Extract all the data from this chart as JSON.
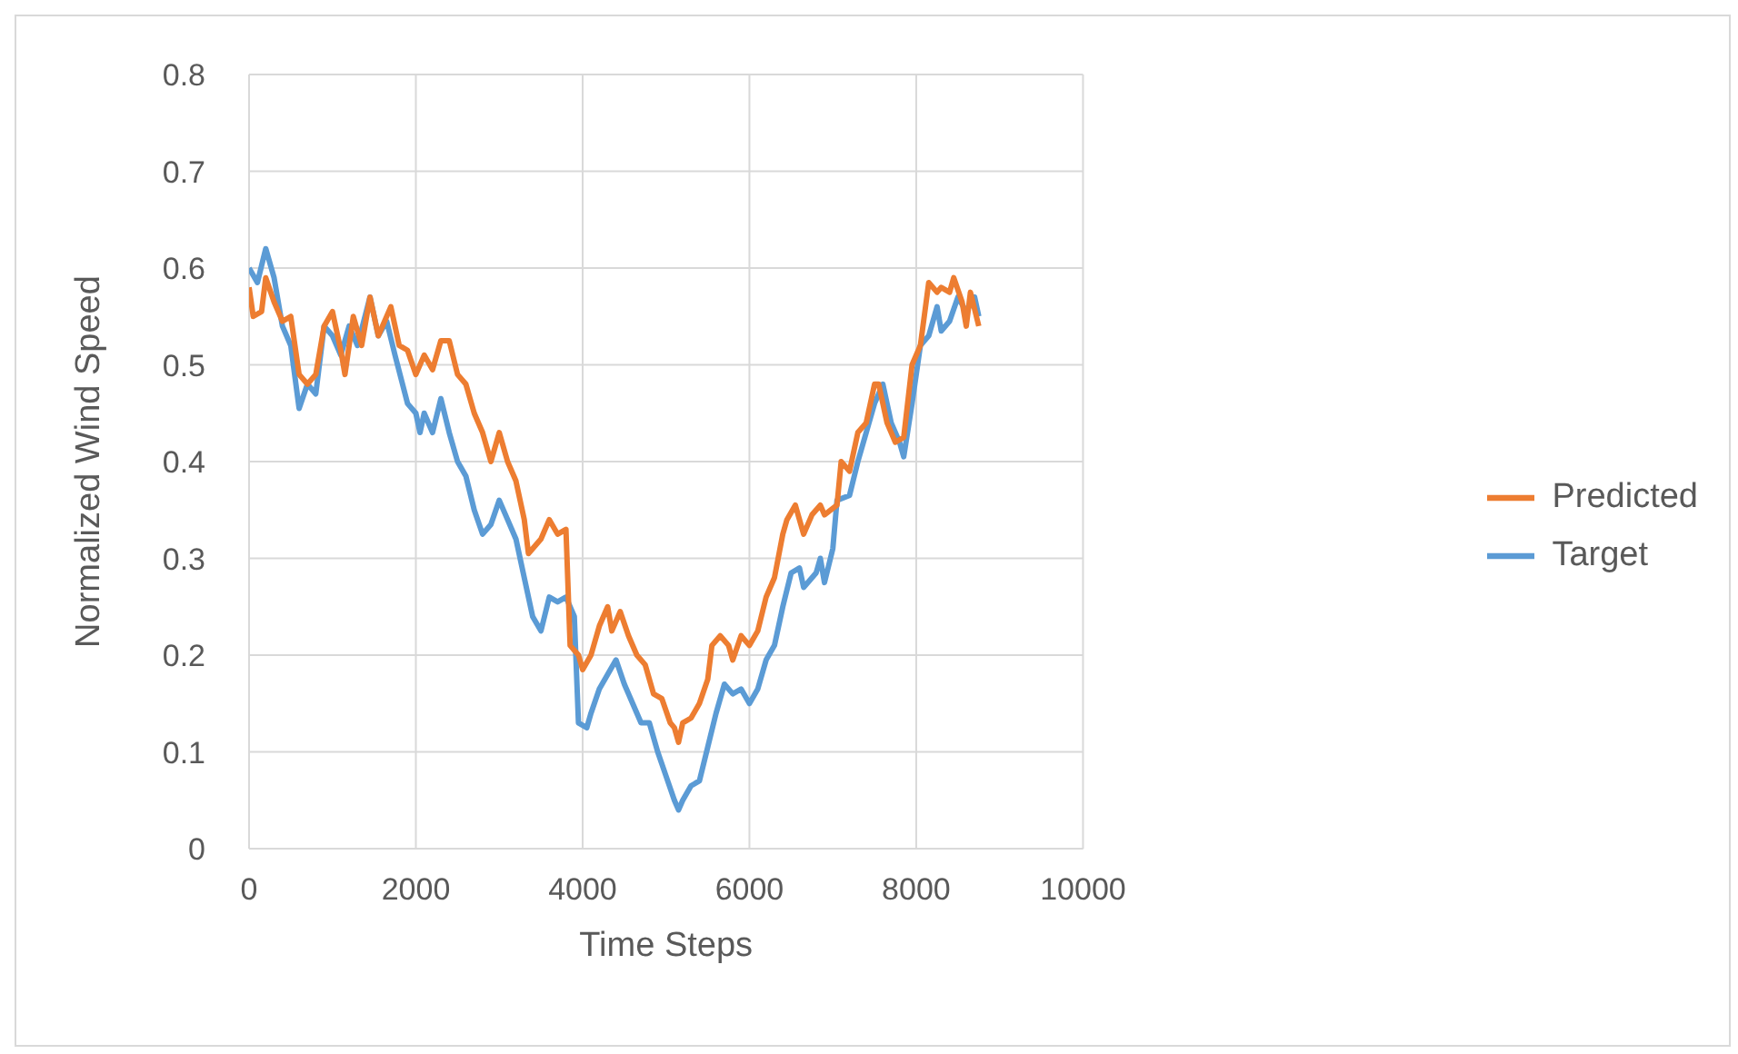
{
  "chart_data": {
    "type": "line",
    "xlabel": "Time Steps",
    "ylabel": "Normalized Wind Speed",
    "xlim": [
      0,
      10000
    ],
    "xticks": [
      0,
      2000,
      4000,
      6000,
      8000,
      10000
    ],
    "ylim": [
      0,
      0.8
    ],
    "yticks": [
      0,
      0.1,
      0.2,
      0.3,
      0.4,
      0.5,
      0.6,
      0.7,
      0.8
    ],
    "grid": true,
    "legend": "right",
    "marker": "none",
    "line_style": "solid",
    "series": [
      {
        "name": "Target",
        "color": "#5b9bd5",
        "x": [
          0,
          100,
          200,
          300,
          400,
          500,
          600,
          700,
          800,
          900,
          1000,
          1100,
          1200,
          1300,
          1450,
          1550,
          1650,
          1750,
          1900,
          2000,
          2050,
          2100,
          2200,
          2300,
          2400,
          2500,
          2600,
          2700,
          2800,
          2900,
          3000,
          3100,
          3200,
          3300,
          3400,
          3500,
          3600,
          3700,
          3800,
          3900,
          3950,
          4050,
          4100,
          4200,
          4300,
          4400,
          4500,
          4600,
          4700,
          4800,
          4900,
          5000,
          5100,
          5150,
          5200,
          5300,
          5400,
          5500,
          5600,
          5700,
          5800,
          5900,
          6000,
          6100,
          6200,
          6300,
          6400,
          6500,
          6600,
          6650,
          6800,
          6850,
          6900,
          7000,
          7050,
          7200,
          7300,
          7400,
          7500,
          7550,
          7600,
          7700,
          7800,
          7850,
          7950,
          8050,
          8150,
          8250,
          8300,
          8400,
          8500,
          8600,
          8700,
          8750
        ],
        "values": [
          0.6,
          0.585,
          0.62,
          0.59,
          0.54,
          0.52,
          0.455,
          0.48,
          0.47,
          0.54,
          0.53,
          0.51,
          0.54,
          0.52,
          0.57,
          0.53,
          0.545,
          0.51,
          0.46,
          0.45,
          0.43,
          0.45,
          0.43,
          0.465,
          0.43,
          0.4,
          0.385,
          0.35,
          0.325,
          0.335,
          0.36,
          0.34,
          0.32,
          0.28,
          0.24,
          0.225,
          0.26,
          0.255,
          0.26,
          0.24,
          0.13,
          0.125,
          0.14,
          0.165,
          0.18,
          0.195,
          0.17,
          0.15,
          0.13,
          0.13,
          0.1,
          0.075,
          0.05,
          0.04,
          0.05,
          0.065,
          0.07,
          0.105,
          0.14,
          0.17,
          0.16,
          0.165,
          0.15,
          0.165,
          0.195,
          0.21,
          0.25,
          0.285,
          0.29,
          0.27,
          0.285,
          0.3,
          0.275,
          0.31,
          0.36,
          0.365,
          0.4,
          0.43,
          0.46,
          0.47,
          0.48,
          0.44,
          0.42,
          0.405,
          0.46,
          0.52,
          0.53,
          0.56,
          0.535,
          0.545,
          0.57,
          0.555,
          0.57,
          0.55
        ]
      },
      {
        "name": "Predicted",
        "color": "#ed7d31",
        "x": [
          0,
          50,
          150,
          200,
          300,
          400,
          500,
          600,
          700,
          800,
          900,
          1000,
          1100,
          1150,
          1250,
          1350,
          1450,
          1550,
          1700,
          1800,
          1900,
          2000,
          2100,
          2200,
          2300,
          2400,
          2500,
          2600,
          2700,
          2800,
          2900,
          3000,
          3100,
          3200,
          3300,
          3350,
          3500,
          3600,
          3700,
          3800,
          3850,
          3950,
          4000,
          4100,
          4200,
          4300,
          4350,
          4450,
          4550,
          4650,
          4750,
          4850,
          4950,
          5050,
          5100,
          5150,
          5200,
          5300,
          5400,
          5500,
          5550,
          5650,
          5750,
          5800,
          5900,
          6000,
          6100,
          6200,
          6300,
          6400,
          6450,
          6550,
          6650,
          6750,
          6850,
          6900,
          7050,
          7100,
          7200,
          7300,
          7400,
          7500,
          7550,
          7650,
          7750,
          7850,
          7950,
          8050,
          8150,
          8250,
          8300,
          8400,
          8450,
          8550,
          8600,
          8650,
          8750
        ],
        "values": [
          0.58,
          0.55,
          0.555,
          0.59,
          0.565,
          0.545,
          0.55,
          0.49,
          0.48,
          0.49,
          0.54,
          0.555,
          0.515,
          0.49,
          0.55,
          0.52,
          0.57,
          0.53,
          0.56,
          0.52,
          0.515,
          0.49,
          0.51,
          0.495,
          0.525,
          0.525,
          0.49,
          0.48,
          0.45,
          0.43,
          0.4,
          0.43,
          0.4,
          0.38,
          0.34,
          0.305,
          0.32,
          0.34,
          0.325,
          0.33,
          0.21,
          0.2,
          0.185,
          0.2,
          0.23,
          0.25,
          0.225,
          0.245,
          0.22,
          0.2,
          0.19,
          0.16,
          0.155,
          0.13,
          0.125,
          0.11,
          0.13,
          0.135,
          0.15,
          0.175,
          0.21,
          0.22,
          0.21,
          0.195,
          0.22,
          0.21,
          0.225,
          0.26,
          0.28,
          0.325,
          0.34,
          0.355,
          0.325,
          0.345,
          0.355,
          0.345,
          0.355,
          0.4,
          0.39,
          0.43,
          0.44,
          0.48,
          0.48,
          0.44,
          0.42,
          0.425,
          0.5,
          0.52,
          0.585,
          0.575,
          0.58,
          0.575,
          0.59,
          0.565,
          0.54,
          0.575,
          0.54
        ]
      }
    ]
  }
}
